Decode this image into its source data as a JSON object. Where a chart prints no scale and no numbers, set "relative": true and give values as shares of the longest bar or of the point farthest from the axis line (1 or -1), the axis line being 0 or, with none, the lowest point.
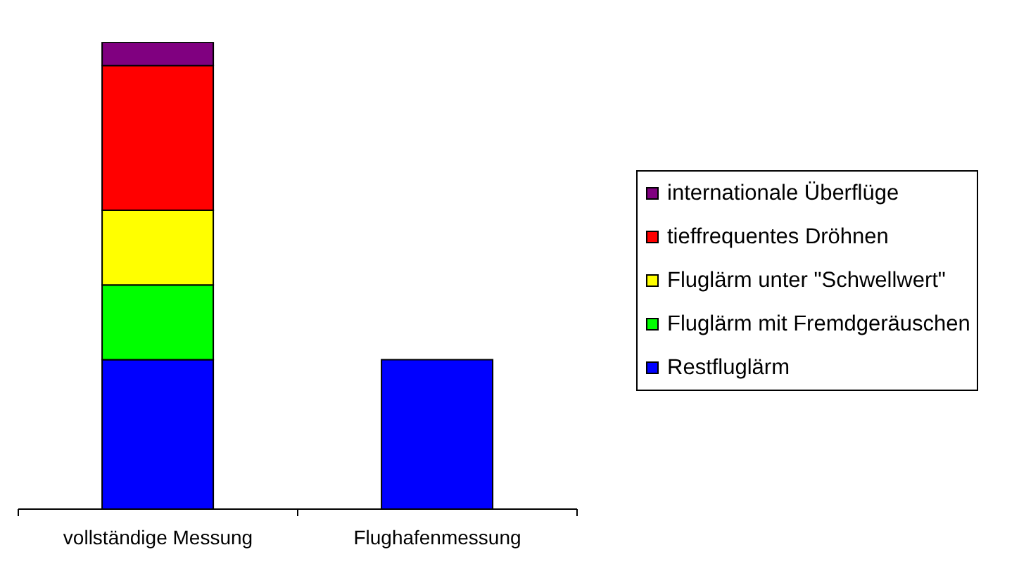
{
  "chart_data": {
    "type": "bar",
    "categories": [
      "vollständige Messung",
      "Flughafenmessung"
    ],
    "stacked": true,
    "relative": true,
    "legend": "right",
    "series": [
      {
        "name": "Restfluglärm",
        "color": "#0000ff",
        "values": [
          0.32,
          0.32
        ]
      },
      {
        "name": "Fluglärm mit Fremdgeräuschen",
        "color": "#00ff00",
        "values": [
          0.16,
          null
        ]
      },
      {
        "name": "Fluglärm unter \"Schwellwert\"",
        "color": "#ffff00",
        "values": [
          0.16,
          null
        ]
      },
      {
        "name": "tieffrequentes Dröhnen",
        "color": "#ff0000",
        "values": [
          0.31,
          null
        ]
      },
      {
        "name": "internationale Überflüge",
        "color": "#800080",
        "values": [
          0.05,
          null
        ]
      }
    ]
  }
}
